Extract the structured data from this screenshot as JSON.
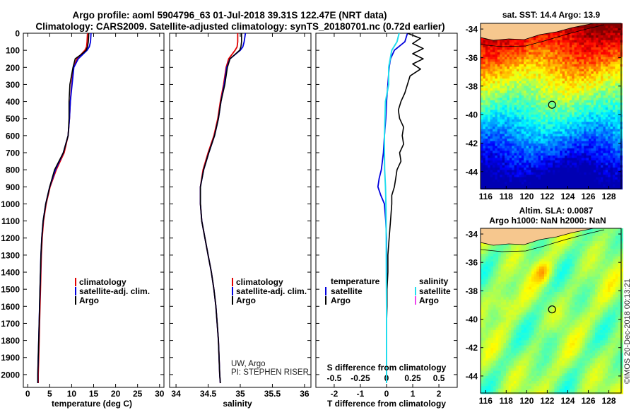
{
  "header": {
    "line1": "Argo profile: aoml 5904796_63 01-Jul-2018 39.31S 122.47E (NRT data)",
    "line2": "Climatology: CARS2009. Satellite-adjusted climatology: synTS_20180701.nc (0.72d earlier)"
  },
  "credit": {
    "line1": "UW, Argo",
    "line2": "PI: STEPHEN RISER"
  },
  "watermark": "©IMOS 20-Dec-2018 00:13:21",
  "colors": {
    "climatology": "#e00000",
    "satellite": "#0000dd",
    "argo": "#000000",
    "sat_salinity": "#22ddee",
    "argo_salinity": "#ee44ee"
  },
  "chart_data": [
    {
      "type": "line",
      "name": "temperature-profile",
      "xlabel": "temperature (deg C)",
      "ylabel": "",
      "xlim": [
        -1,
        31
      ],
      "ylim": [
        2075,
        0
      ],
      "xticks": [
        0,
        5,
        10,
        15,
        20,
        25,
        30
      ],
      "yticks": [
        0,
        100,
        200,
        300,
        400,
        500,
        600,
        700,
        800,
        900,
        1000,
        1100,
        1200,
        1300,
        1400,
        1500,
        1600,
        1700,
        1800,
        1900,
        2000
      ],
      "legend": [
        "climatology",
        "satellite-adj. clim.",
        "Argo"
      ],
      "series": [
        {
          "name": "climatology",
          "depth": [
            0,
            50,
            80,
            100,
            150,
            200,
            300,
            400,
            500,
            600,
            700,
            800,
            900,
            1000,
            1100,
            1200,
            1300,
            1400,
            1500,
            1600,
            1700,
            1800,
            1900,
            2000,
            2050
          ],
          "values": [
            13.6,
            13.5,
            13.4,
            13.0,
            11.2,
            10.4,
            10.0,
            9.7,
            9.5,
            9.2,
            8.3,
            6.5,
            5.1,
            4.2,
            3.6,
            3.3,
            3.1,
            3.0,
            2.9,
            2.8,
            2.7,
            2.6,
            2.5,
            2.4,
            2.4
          ]
        },
        {
          "name": "satellite-adj. clim.",
          "depth": [
            0,
            50,
            80,
            100,
            150,
            200,
            300,
            400,
            500,
            600,
            700,
            800,
            900,
            1000,
            1100,
            1200,
            1300,
            1400,
            1500,
            1600,
            1700,
            1800,
            1900,
            2000,
            2050
          ],
          "values": [
            14.4,
            14.3,
            14.0,
            13.5,
            11.5,
            10.5,
            10.1,
            9.7,
            9.5,
            9.2,
            8.1,
            6.3,
            5.0,
            4.1,
            3.5,
            3.2,
            3.0,
            2.9,
            2.8,
            2.7,
            2.6,
            2.5,
            2.4,
            2.3,
            2.3
          ]
        },
        {
          "name": "Argo",
          "depth": [
            0,
            50,
            80,
            100,
            120,
            150,
            200,
            300,
            400,
            500,
            600,
            700,
            800,
            900,
            1000,
            1100,
            1200,
            1300,
            1400,
            1500,
            1600,
            1700,
            1800,
            1900,
            2000,
            2050
          ],
          "values": [
            13.9,
            13.8,
            13.6,
            13.3,
            12.4,
            10.8,
            10.3,
            9.6,
            9.4,
            9.4,
            9.2,
            8.1,
            6.1,
            5.0,
            4.1,
            3.5,
            3.2,
            3.0,
            2.9,
            2.8,
            2.7,
            2.6,
            2.5,
            2.4,
            2.3,
            2.3
          ]
        }
      ]
    },
    {
      "type": "line",
      "name": "salinity-profile",
      "xlabel": "salinity",
      "xlim": [
        33.9,
        36.1
      ],
      "ylim": [
        2075,
        0
      ],
      "xticks": [
        34,
        34.5,
        35,
        35.5,
        36
      ],
      "ytick_labels_shown": false,
      "legend": [
        "climatology",
        "satellite-adj. clim.",
        "Argo"
      ],
      "series": [
        {
          "name": "climatology",
          "depth": [
            0,
            50,
            80,
            100,
            150,
            200,
            300,
            400,
            500,
            600,
            700,
            800,
            900,
            1000,
            1100,
            1200,
            1300,
            1400,
            1500,
            1600,
            1700,
            1800,
            1900,
            2000,
            2050
          ],
          "values": [
            34.96,
            34.96,
            34.95,
            34.92,
            34.82,
            34.78,
            34.74,
            34.69,
            34.65,
            34.59,
            34.5,
            34.42,
            34.38,
            34.38,
            34.4,
            34.45,
            34.5,
            34.55,
            34.59,
            34.62,
            34.64,
            34.66,
            34.67,
            34.68,
            34.69
          ]
        },
        {
          "name": "satellite-adj. clim.",
          "depth": [
            0,
            50,
            80,
            100,
            150,
            200,
            300,
            400,
            500,
            600,
            700,
            800,
            900,
            1000,
            1100,
            1200,
            1300,
            1400,
            1500,
            1600,
            1700,
            1800,
            1900,
            2000,
            2050
          ],
          "values": [
            35.08,
            35.06,
            35.04,
            35.0,
            34.84,
            34.79,
            34.75,
            34.7,
            34.66,
            34.6,
            34.51,
            34.43,
            34.38,
            34.38,
            34.4,
            34.45,
            34.5,
            34.55,
            34.59,
            34.62,
            34.64,
            34.66,
            34.67,
            34.68,
            34.69
          ]
        },
        {
          "name": "Argo",
          "depth": [
            0,
            50,
            80,
            100,
            150,
            200,
            300,
            400,
            500,
            600,
            700,
            800,
            900,
            1000,
            1100,
            1200,
            1300,
            1400,
            1500,
            1600,
            1700,
            1800,
            1900,
            2000,
            2050
          ],
          "values": [
            35.02,
            35.02,
            35.01,
            34.99,
            34.84,
            34.8,
            34.76,
            34.7,
            34.66,
            34.6,
            34.51,
            34.43,
            34.38,
            34.38,
            34.4,
            34.45,
            34.5,
            34.55,
            34.59,
            34.62,
            34.64,
            34.66,
            34.67,
            34.68,
            34.69
          ]
        }
      ]
    },
    {
      "type": "line",
      "name": "difference-profile",
      "xlabel": "T difference from climatology",
      "top_axis_label": "S difference from climatology",
      "xlim": [
        -2.7,
        2.7
      ],
      "ylim": [
        2075,
        0
      ],
      "xticks": [
        -2,
        -1,
        0,
        1,
        2
      ],
      "top_ticks": [
        "-0.5",
        "-0.25",
        "0",
        "0.25",
        "0.5"
      ],
      "legend_temperature": [
        "temperature",
        "satellite",
        "Argo"
      ],
      "legend_salinity": [
        "salinity",
        "satellite",
        "Argo"
      ],
      "series": [
        {
          "name": "T satellite",
          "depth": [
            0,
            50,
            100,
            150,
            200,
            300,
            400,
            500,
            600,
            700,
            800,
            850,
            900,
            950,
            1000,
            1100,
            1200,
            1400,
            1600,
            1800,
            2000,
            2050
          ],
          "values": [
            0.8,
            0.7,
            0.3,
            0.15,
            0.1,
            0.05,
            0.0,
            -0.03,
            -0.08,
            -0.12,
            -0.2,
            -0.28,
            -0.33,
            -0.22,
            -0.08,
            -0.03,
            0.0,
            0.0,
            0.0,
            0.0,
            0.0,
            0.0
          ]
        },
        {
          "name": "T Argo",
          "depth": [
            0,
            30,
            60,
            90,
            120,
            150,
            180,
            210,
            250,
            300,
            350,
            400,
            450,
            500,
            550,
            600,
            650,
            700,
            750,
            800,
            850,
            900,
            950,
            1000,
            1100,
            1200,
            1300,
            1400,
            1500,
            1600,
            1700,
            1800,
            1900,
            2000,
            2050
          ],
          "values": [
            0.8,
            1.3,
            1.0,
            1.4,
            1.0,
            1.4,
            1.0,
            1.3,
            0.9,
            0.8,
            0.7,
            0.55,
            0.45,
            0.5,
            0.65,
            0.6,
            0.65,
            0.5,
            0.55,
            0.4,
            0.35,
            0.3,
            0.2,
            0.2,
            0.15,
            0.1,
            0.05,
            0.05,
            0.02,
            0.02,
            0.0,
            0.0,
            0.0,
            0.0,
            0.0
          ]
        },
        {
          "name": "S satellite",
          "depth": [
            0,
            50,
            100,
            200,
            300,
            400,
            500,
            600,
            700,
            800,
            900,
            1000,
            1200,
            1400,
            1600,
            1800,
            2000,
            2050
          ],
          "values": [
            0.12,
            0.1,
            0.05,
            0.02,
            0.02,
            -0.01,
            -0.015,
            -0.02,
            -0.02,
            -0.018,
            -0.01,
            -0.006,
            -0.003,
            -0.002,
            0.0,
            0.0,
            0.0,
            0.0
          ]
        }
      ]
    },
    {
      "type": "heatmap",
      "name": "sst-map",
      "title": "sat. SST: 14.4  Argo: 13.9",
      "xticks": [
        "116",
        "118",
        "120",
        "122",
        "124",
        "126",
        "128"
      ],
      "yticks": [
        "-34",
        "-36",
        "-38",
        "-40",
        "-42",
        "-44"
      ],
      "xlim": [
        115.5,
        129.2
      ],
      "ylim": [
        -45.2,
        -33.6
      ],
      "argo_position": {
        "lon": 122.47,
        "lat": -39.31
      }
    },
    {
      "type": "heatmap",
      "name": "sla-map",
      "title_line1": "Altim. SLA: 0.0087",
      "title_line2": "Argo h1000: NaN h2000: NaN",
      "xticks": [
        "116",
        "118",
        "120",
        "122",
        "124",
        "126",
        "128"
      ],
      "yticks": [
        "-34",
        "-36",
        "-38",
        "-40",
        "-42",
        "-44"
      ],
      "xlim": [
        115.5,
        129.2
      ],
      "ylim": [
        -45.2,
        -33.6
      ],
      "argo_position": {
        "lon": 122.47,
        "lat": -39.31
      }
    }
  ]
}
